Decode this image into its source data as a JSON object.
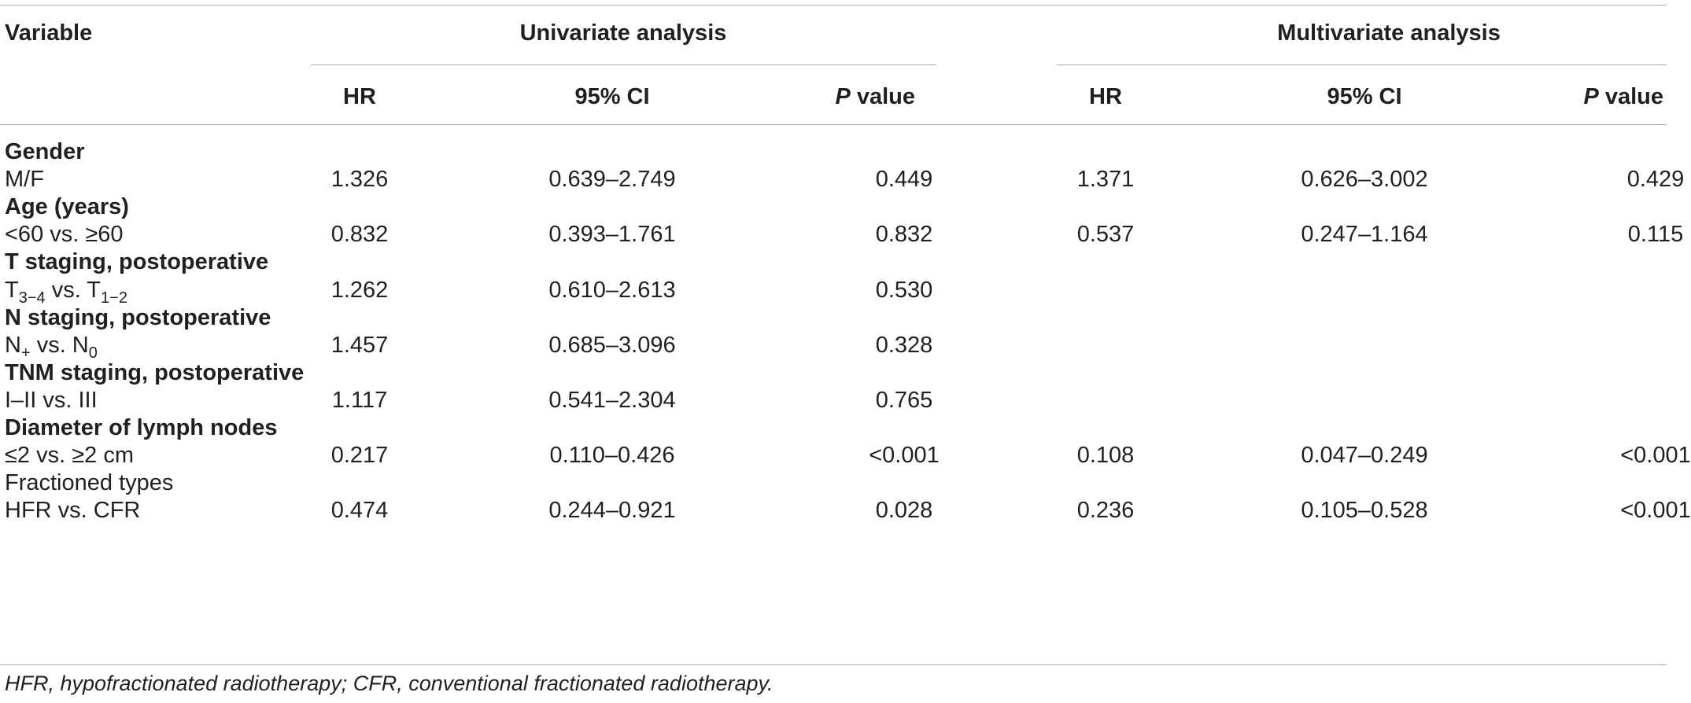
{
  "header": {
    "variable": "Variable",
    "univariate": "Univariate analysis",
    "multivariate": "Multivariate analysis",
    "hr": "HR",
    "ci": "95% CI",
    "p_italic": "P",
    "p_rest": " value"
  },
  "rows": [
    {
      "type": "group",
      "label": "Gender",
      "bold": true
    },
    {
      "type": "data",
      "label": "M/F",
      "u_hr": "1.326",
      "u_ci": "0.639–2.749",
      "u_p": "0.449",
      "m_hr": "1.371",
      "m_ci": "0.626–3.002",
      "m_p": "0.429"
    },
    {
      "type": "group",
      "label": "Age (years)",
      "bold": true
    },
    {
      "type": "data",
      "label": "<60 vs. ≥60",
      "u_hr": "0.832",
      "u_ci": "0.393–1.761",
      "u_p": "0.832",
      "m_hr": "0.537",
      "m_ci": "0.247–1.164",
      "m_p": "0.115"
    },
    {
      "type": "group",
      "label": "T staging, postoperative",
      "bold": true
    },
    {
      "type": "data",
      "label_parts": [
        {
          "t": "T"
        },
        {
          "sub": "3−4"
        },
        {
          "t": " vs. T"
        },
        {
          "sub": "1−2"
        }
      ],
      "u_hr": "1.262",
      "u_ci": "0.610–2.613",
      "u_p": "0.530",
      "m_hr": "",
      "m_ci": "",
      "m_p": ""
    },
    {
      "type": "group",
      "label": "N staging, postoperative",
      "bold": true
    },
    {
      "type": "data",
      "label_parts": [
        {
          "t": "N"
        },
        {
          "sub": "+"
        },
        {
          "t": " vs. N"
        },
        {
          "sub": "0"
        }
      ],
      "u_hr": "1.457",
      "u_ci": "0.685–3.096",
      "u_p": "0.328",
      "m_hr": "",
      "m_ci": "",
      "m_p": ""
    },
    {
      "type": "group",
      "label": "TNM staging, postoperative",
      "bold": true
    },
    {
      "type": "data",
      "label": "I–II vs. III",
      "u_hr": "1.117",
      "u_ci": "0.541–2.304",
      "u_p": "0.765",
      "m_hr": "",
      "m_ci": "",
      "m_p": ""
    },
    {
      "type": "group",
      "label": "Diameter of lymph nodes",
      "bold": true
    },
    {
      "type": "data",
      "label": "≤2 vs. ≥2 cm",
      "u_hr": "0.217",
      "u_ci": "0.110–0.426",
      "u_p": "<0.001",
      "m_hr": "0.108",
      "m_ci": "0.047–0.249",
      "m_p": "<0.001"
    },
    {
      "type": "group",
      "label": "Fractioned types",
      "bold": false
    },
    {
      "type": "data",
      "label": "HFR vs. CFR",
      "u_hr": "0.474",
      "u_ci": "0.244–0.921",
      "u_p": "0.028",
      "m_hr": "0.236",
      "m_ci": "0.105–0.528",
      "m_p": "<0.001"
    }
  ],
  "footnote": "HFR, hypofractionated radiotherapy; CFR, conventional fractionated radiotherapy."
}
